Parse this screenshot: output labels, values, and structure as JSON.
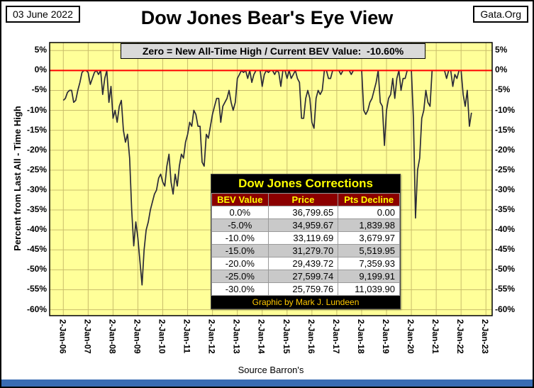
{
  "header": {
    "date": "03 June 2022",
    "title": "Dow Jones Bear's Eye View",
    "site": "Gata.Org"
  },
  "chart_data": {
    "type": "line",
    "title": "Dow Jones Bear's Eye View",
    "subtitle": "Zero = New All-Time High / Current BEV Value:  -10.60%",
    "ylabel": "Percent from  Last All - Time  High",
    "source_label": "Source Barron's",
    "current_bev_value": -10.6,
    "ylim": [
      -60,
      5
    ],
    "grid": true,
    "legend": "none",
    "y_tick_values": [
      5,
      0,
      -5,
      -10,
      -15,
      -20,
      -25,
      -30,
      -35,
      -40,
      -45,
      -50,
      -55,
      -60
    ],
    "y_tick_labels": [
      "5%",
      "0%",
      "-5%",
      "-10%",
      "-15%",
      "-20%",
      "-25%",
      "-30%",
      "-35%",
      "-40%",
      "-45%",
      "-50%",
      "-55%",
      "-60%"
    ],
    "x_tick_labels": [
      "2-Jan-06",
      "2-Jan-07",
      "2-Jan-08",
      "2-Jan-09",
      "2-Jan-10",
      "2-Jan-11",
      "2-Jan-12",
      "2-Jan-13",
      "2-Jan-14",
      "2-Jan-15",
      "2-Jan-16",
      "2-Jan-17",
      "2-Jan-18",
      "2-Jan-19",
      "2-Jan-20",
      "2-Jan-21",
      "2-Jan-22",
      "2-Jan-23"
    ],
    "zero_line": {
      "value": 0,
      "color": "#ff0000"
    },
    "colors": {
      "plot_bg": "#ffff99",
      "gridline": "#c9be6b",
      "series": "#2a2a38",
      "zero_line": "#ff0000",
      "plot_border": "#000000"
    },
    "series": [
      {
        "name": "Dow Jones BEV (% below last all-time high)",
        "x_start_year": 2006,
        "x_step": "monthly",
        "values": [
          -7.5,
          -7,
          -5.5,
          -5,
          -5,
          -8,
          -7.5,
          -5,
          -3,
          -0.5,
          0,
          0,
          -0.5,
          -3.5,
          -2,
          -0.5,
          0,
          -1,
          0,
          -6,
          -2,
          0,
          -8,
          -4,
          -12,
          -10,
          -13,
          -9,
          -7.5,
          -15,
          -18,
          -16,
          -22,
          -35,
          -44,
          -38,
          -42,
          -48,
          -53.8,
          -45,
          -40,
          -38,
          -35,
          -33,
          -31,
          -30,
          -27,
          -26,
          -28,
          -29,
          -24,
          -21,
          -28,
          -31,
          -26,
          -29,
          -24,
          -21,
          -22,
          -18,
          -16,
          -13,
          -14,
          -10,
          -11,
          -14,
          -14,
          -23,
          -24,
          -16,
          -17,
          -14,
          -11,
          -9,
          -7,
          -7,
          -13,
          -9,
          -8,
          -7,
          -5,
          -8,
          -10,
          -8,
          -2,
          -1,
          0,
          -0.5,
          0,
          -2,
          0,
          -3,
          -1,
          0,
          0,
          0,
          -4,
          -1,
          0,
          -0.5,
          0,
          0,
          -1,
          0,
          -0.5,
          -4,
          0,
          0,
          -2,
          0,
          -2,
          -1,
          0,
          -2,
          -3,
          -12,
          -12,
          -7,
          -5,
          -7,
          -13,
          -14.5,
          -7,
          -5,
          -6,
          -5,
          0,
          0,
          -2,
          -2,
          0,
          0,
          0,
          0,
          -1,
          0,
          0,
          0,
          0,
          -1,
          0,
          0,
          0,
          0,
          0,
          -10,
          -11,
          -10,
          -8,
          -7,
          -5,
          -3,
          0,
          -8,
          -9,
          -18.8,
          -10,
          -7,
          -6,
          -2,
          -7,
          -2,
          0,
          -5,
          -2,
          -2,
          0,
          0,
          0,
          -12,
          -37,
          -25,
          -22,
          -12,
          -10,
          -5,
          -8,
          -9,
          0,
          0,
          0,
          0,
          0,
          0,
          0,
          -2,
          0,
          0,
          -4,
          -1,
          -2,
          0,
          0,
          -6,
          -9,
          -5,
          -14,
          -10.6
        ]
      }
    ],
    "inset_table": {
      "title": "Dow Jones Corrections",
      "headers": [
        "BEV Value",
        "Price",
        "Pts Decline"
      ],
      "rows": [
        [
          "0.0%",
          "36,799.65",
          "0.00"
        ],
        [
          "-5.0%",
          "34,959.67",
          "1,839.98"
        ],
        [
          "-10.0%",
          "33,119.69",
          "3,679.97"
        ],
        [
          "-15.0%",
          "31,279.70",
          "5,519.95"
        ],
        [
          "-20.0%",
          "29,439.72",
          "7,359.93"
        ],
        [
          "-25.0%",
          "27,599.74",
          "9,199.91"
        ],
        [
          "-30.0%",
          "25,759.76",
          "11,039.90"
        ]
      ],
      "footer": "Graphic by Mark J. Lundeen",
      "colors": {
        "title_bg": "#000000",
        "title_text": "#ffff00",
        "header_bg": "#8b0000",
        "header_text": "#ffff00",
        "row_alt_bg": "#c9c9c9",
        "footer_text": "#ffc800"
      }
    }
  }
}
